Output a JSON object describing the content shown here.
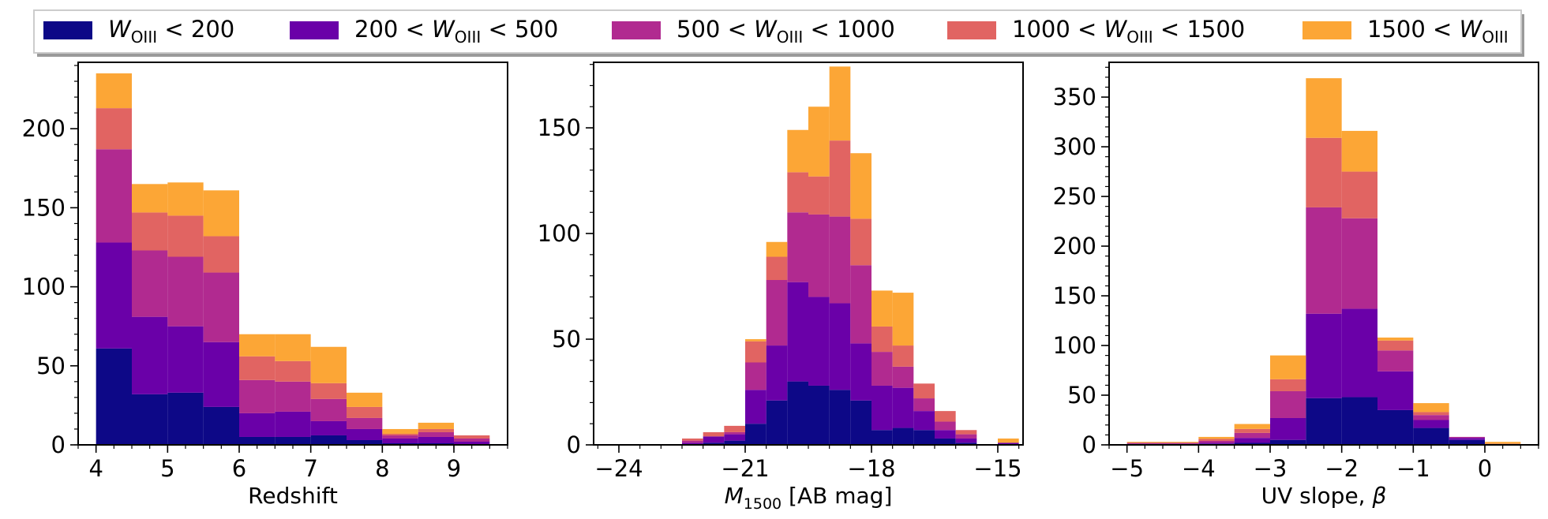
{
  "legend": {
    "entries": [
      {
        "lo": "",
        "hi": "200",
        "color": "#0d0887"
      },
      {
        "lo": "200",
        "hi": "500",
        "color": "#6a00a8"
      },
      {
        "lo": "500",
        "hi": "1000",
        "color": "#b12a90"
      },
      {
        "lo": "1000",
        "hi": "1500",
        "color": "#e16462"
      },
      {
        "lo": "1500",
        "hi": "",
        "color": "#fca636"
      }
    ],
    "w_symbol": "W",
    "w_subscript": "OIII",
    "less_than": "<"
  },
  "chart_data": [
    {
      "type": "bar",
      "stacked": true,
      "title": "",
      "xlabel": "Redshift",
      "ylabel": "",
      "xlim": [
        3.75,
        9.75
      ],
      "ylim": [
        0,
        242
      ],
      "xticks": [
        4,
        5,
        6,
        7,
        8,
        9
      ],
      "xtick_labels": [
        "4",
        "5",
        "6",
        "7",
        "8",
        "9"
      ],
      "yticks": [
        0,
        50,
        100,
        150,
        200
      ],
      "ytick_labels": [
        "0",
        "50",
        "100",
        "150",
        "200"
      ],
      "bin_edges": [
        4.0,
        4.5,
        5.0,
        5.5,
        6.0,
        6.5,
        7.0,
        7.5,
        8.0,
        8.5,
        9.0,
        9.5
      ],
      "series": [
        {
          "name": "W_OIII < 200",
          "values": [
            61,
            32,
            33,
            24,
            5,
            5,
            6,
            3,
            1,
            1,
            0
          ]
        },
        {
          "name": "200 < W_OIII < 500",
          "values": [
            67,
            49,
            42,
            41,
            15,
            16,
            9,
            7,
            3,
            4,
            2
          ]
        },
        {
          "name": "500 < W_OIII < 1000",
          "values": [
            59,
            42,
            44,
            44,
            21,
            19,
            14,
            7,
            2,
            3,
            2
          ]
        },
        {
          "name": "1000 < W_OIII < 1500",
          "values": [
            26,
            24,
            26,
            23,
            15,
            13,
            10,
            7,
            1,
            2,
            2
          ]
        },
        {
          "name": "1500 < W_OIII",
          "values": [
            22,
            18,
            21,
            29,
            14,
            17,
            23,
            9,
            3,
            4,
            0
          ]
        }
      ]
    },
    {
      "type": "bar",
      "stacked": true,
      "title": "",
      "xlabel": "M1500 [AB mag]",
      "xlabel_symbol": "M",
      "xlabel_subscript": "1500",
      "xlabel_unit": "[AB mag]",
      "ylabel": "",
      "xlim": [
        -24.6,
        -14.4
      ],
      "ylim": [
        0,
        181
      ],
      "xticks": [
        -24,
        -21,
        -18,
        -15
      ],
      "xtick_labels": [
        "−24",
        "−21",
        "−18",
        "−15"
      ],
      "yticks": [
        0,
        50,
        100,
        150
      ],
      "ytick_labels": [
        "0",
        "50",
        "100",
        "150"
      ],
      "bin_edges": [
        -24.0,
        -23.5,
        -23.0,
        -22.5,
        -22.0,
        -21.5,
        -21.0,
        -20.5,
        -20.0,
        -19.5,
        -19.0,
        -18.5,
        -18.0,
        -17.5,
        -17.0,
        -16.5,
        -16.0,
        -15.5,
        -15.0,
        -14.5
      ],
      "series": [
        {
          "name": "W_OIII < 200",
          "values": [
            0,
            0,
            0,
            0,
            1,
            2,
            10,
            21,
            30,
            28,
            26,
            21,
            7,
            8,
            7,
            3,
            1,
            0,
            0
          ]
        },
        {
          "name": "200 < W_OIII < 500",
          "values": [
            0,
            0,
            0,
            1,
            3,
            3,
            16,
            26,
            47,
            42,
            41,
            27,
            21,
            19,
            9,
            4,
            2,
            0,
            1
          ]
        },
        {
          "name": "500 < W_OIII < 1000",
          "values": [
            0,
            0,
            0,
            1,
            0,
            1,
            13,
            31,
            33,
            39,
            41,
            37,
            16,
            10,
            6,
            4,
            2,
            0,
            0
          ]
        },
        {
          "name": "1000 < W_OIII < 1500",
          "values": [
            0,
            0,
            0,
            1,
            2,
            3,
            10,
            11,
            19,
            18,
            36,
            22,
            12,
            10,
            7,
            5,
            2,
            0,
            0
          ]
        },
        {
          "name": "1500 < W_OIII",
          "values": [
            0,
            0,
            0,
            0,
            0,
            0,
            1,
            7,
            20,
            33,
            35,
            31,
            17,
            25,
            0,
            0,
            0,
            0,
            2
          ]
        }
      ]
    },
    {
      "type": "bar",
      "stacked": true,
      "title": "",
      "xlabel": "UV slope, β",
      "xlabel_text": "UV slope, ",
      "xlabel_symbol": "β",
      "ylabel": "",
      "xlim": [
        -5.25,
        0.75
      ],
      "ylim": [
        0,
        385
      ],
      "xticks": [
        -5,
        -4,
        -3,
        -2,
        -1,
        0
      ],
      "xtick_labels": [
        "−5",
        "−4",
        "−3",
        "−2",
        "−1",
        "0"
      ],
      "yticks": [
        0,
        50,
        100,
        150,
        200,
        250,
        300,
        350
      ],
      "ytick_labels": [
        "0",
        "50",
        "100",
        "150",
        "200",
        "250",
        "300",
        "350"
      ],
      "bin_edges": [
        -5.0,
        -4.5,
        -4.0,
        -3.5,
        -3.0,
        -2.5,
        -2.0,
        -1.5,
        -1.0,
        -0.5,
        0.0,
        0.5
      ],
      "series": [
        {
          "name": "W_OIII < 200",
          "values": [
            0,
            0,
            1,
            2,
            5,
            47,
            48,
            35,
            17,
            5,
            0
          ]
        },
        {
          "name": "200 < W_OIII < 500",
          "values": [
            1,
            1,
            1,
            5,
            22,
            85,
            89,
            39,
            8,
            2,
            1
          ]
        },
        {
          "name": "500 < W_OIII < 1000",
          "values": [
            1,
            1,
            2,
            5,
            27,
            107,
            91,
            21,
            5,
            1,
            0
          ]
        },
        {
          "name": "1000 < W_OIII < 1500",
          "values": [
            0,
            0,
            2,
            4,
            12,
            70,
            47,
            10,
            3,
            0,
            0
          ]
        },
        {
          "name": "1500 < W_OIII",
          "values": [
            1,
            1,
            2,
            5,
            24,
            60,
            41,
            3,
            9,
            0,
            2
          ]
        }
      ]
    }
  ]
}
